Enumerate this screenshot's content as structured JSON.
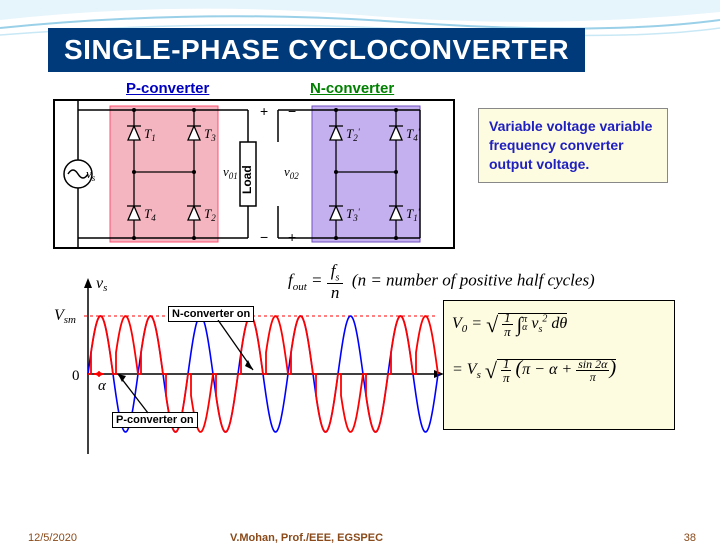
{
  "title": "SINGLE-PHASE CYCLOCONVERTER",
  "pconv_label": "P-converter",
  "nconv_label": "N-converter",
  "info_text": "Variable voltage variable frequency converter output voltage.",
  "circuit": {
    "border_color": "#000000",
    "p_block_fill": "#f5b5c0",
    "n_block_fill": "#c5b0ef",
    "thyristors_p": [
      "T₁",
      "T₃",
      "T₄",
      "T₂"
    ],
    "thyristors_n": [
      "T₂'",
      "T₄'",
      "T₃'",
      "T₁'"
    ],
    "vs_label": "vₛ",
    "v01_label": "v₀₁",
    "v02_label": "v₀₂",
    "load_label": "Load",
    "plus": "+",
    "minus": "−"
  },
  "formula_top": "f_out = f_s / n   (n = number of positive half cycles)",
  "formula_box_lines": [
    "V₀ = √( (1/π) ∫_α^π v_s² dθ )",
    "= V_s √( (1/π)( π − α + sin 2α / π ) )"
  ],
  "wave": {
    "y_label_top": "v_s",
    "Vsm": "V_sm",
    "zero": "0",
    "alpha": "α",
    "nconv_on": "N-converter on",
    "pconv_on": "P-converter on",
    "colors": {
      "vs_envelope": "#0000ff",
      "output": "#ff0000",
      "axis": "#000000",
      "dashed": "#ff0000"
    },
    "periods_shown": 7,
    "n_half_cycles_per_group": 3
  },
  "footer": {
    "date": "12/5/2020",
    "author": "V.Mohan,  Prof./EEE,  EGSPEC",
    "page": "38"
  },
  "bg_wave_colors": [
    "#9ad0e8",
    "#c8e8f5",
    "#e6f4fb"
  ],
  "title_bg": "#003a7a",
  "info_box_bg": "#fdfbe0",
  "formula_box_bg": "#fdfbe0"
}
